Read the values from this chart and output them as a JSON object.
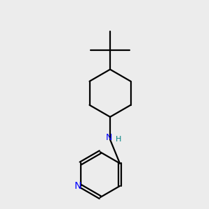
{
  "background_color": "#ececec",
  "bond_color": "#000000",
  "nitrogen_color": "#0000ff",
  "nh_h_color": "#008080",
  "line_width": 1.6,
  "font_size_nh": 9,
  "font_size_n": 10,
  "xlim": [
    1.5,
    8.5
  ],
  "ylim": [
    0.5,
    10.0
  ]
}
